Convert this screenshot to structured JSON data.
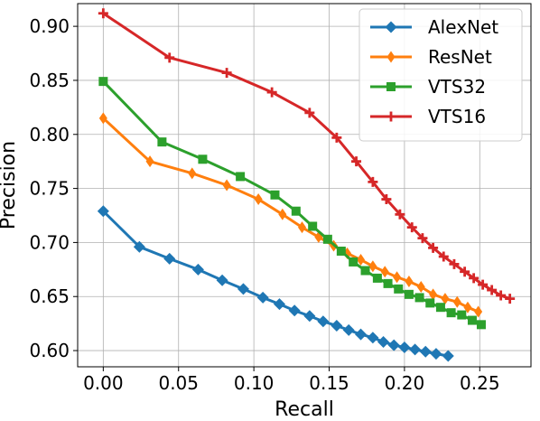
{
  "chart_data": {
    "type": "line",
    "title": "",
    "xlabel": "Recall",
    "ylabel": "Precision",
    "xlim": [
      -0.017,
      0.284
    ],
    "ylim": [
      0.585,
      0.921
    ],
    "grid": true,
    "legend_position": "top-right",
    "x_ticks": [
      0.0,
      0.05,
      0.1,
      0.15,
      0.2,
      0.25
    ],
    "x_tick_labels": [
      "0.00",
      "0.05",
      "0.10",
      "0.15",
      "0.20",
      "0.25"
    ],
    "y_ticks": [
      0.6,
      0.65,
      0.7,
      0.75,
      0.8,
      0.85,
      0.9
    ],
    "y_tick_labels": [
      "0.60",
      "0.65",
      "0.70",
      "0.75",
      "0.80",
      "0.85",
      "0.90"
    ],
    "series": [
      {
        "name": "AlexNet",
        "color": "#1f77b4",
        "marker": "diamond",
        "x": [
          0.0,
          0.024,
          0.044,
          0.063,
          0.079,
          0.093,
          0.106,
          0.117,
          0.127,
          0.137,
          0.146,
          0.155,
          0.163,
          0.171,
          0.179,
          0.186,
          0.193,
          0.2,
          0.207,
          0.214,
          0.221,
          0.229
        ],
        "y": [
          0.729,
          0.696,
          0.685,
          0.675,
          0.665,
          0.657,
          0.649,
          0.643,
          0.637,
          0.632,
          0.627,
          0.623,
          0.619,
          0.615,
          0.612,
          0.608,
          0.605,
          0.603,
          0.601,
          0.599,
          0.597,
          0.595
        ]
      },
      {
        "name": "ResNet",
        "color": "#ff7f0e",
        "marker": "thin-diamond",
        "x": [
          0.0,
          0.031,
          0.059,
          0.082,
          0.103,
          0.119,
          0.132,
          0.143,
          0.153,
          0.162,
          0.171,
          0.179,
          0.187,
          0.195,
          0.203,
          0.211,
          0.219,
          0.227,
          0.235,
          0.242,
          0.249
        ],
        "y": [
          0.815,
          0.775,
          0.764,
          0.753,
          0.74,
          0.726,
          0.714,
          0.705,
          0.697,
          0.69,
          0.684,
          0.678,
          0.673,
          0.668,
          0.664,
          0.659,
          0.652,
          0.648,
          0.645,
          0.64,
          0.636
        ]
      },
      {
        "name": "VTS32",
        "color": "#2ca02c",
        "marker": "square",
        "x": [
          0.0,
          0.039,
          0.066,
          0.091,
          0.114,
          0.128,
          0.139,
          0.149,
          0.158,
          0.166,
          0.174,
          0.182,
          0.189,
          0.196,
          0.203,
          0.21,
          0.217,
          0.224,
          0.231,
          0.238,
          0.245,
          0.251
        ],
        "y": [
          0.849,
          0.793,
          0.777,
          0.761,
          0.744,
          0.729,
          0.715,
          0.703,
          0.692,
          0.682,
          0.674,
          0.667,
          0.662,
          0.657,
          0.652,
          0.649,
          0.644,
          0.64,
          0.635,
          0.633,
          0.628,
          0.624
        ]
      },
      {
        "name": "VTS16",
        "color": "#d62728",
        "marker": "plus",
        "x": [
          0.0,
          0.044,
          0.082,
          0.112,
          0.137,
          0.155,
          0.168,
          0.179,
          0.188,
          0.197,
          0.205,
          0.212,
          0.219,
          0.226,
          0.233,
          0.24,
          0.246,
          0.252,
          0.258,
          0.264,
          0.27
        ],
        "y": [
          0.912,
          0.871,
          0.857,
          0.839,
          0.82,
          0.797,
          0.775,
          0.756,
          0.74,
          0.726,
          0.714,
          0.704,
          0.695,
          0.687,
          0.68,
          0.673,
          0.667,
          0.661,
          0.656,
          0.651,
          0.648
        ]
      }
    ]
  }
}
